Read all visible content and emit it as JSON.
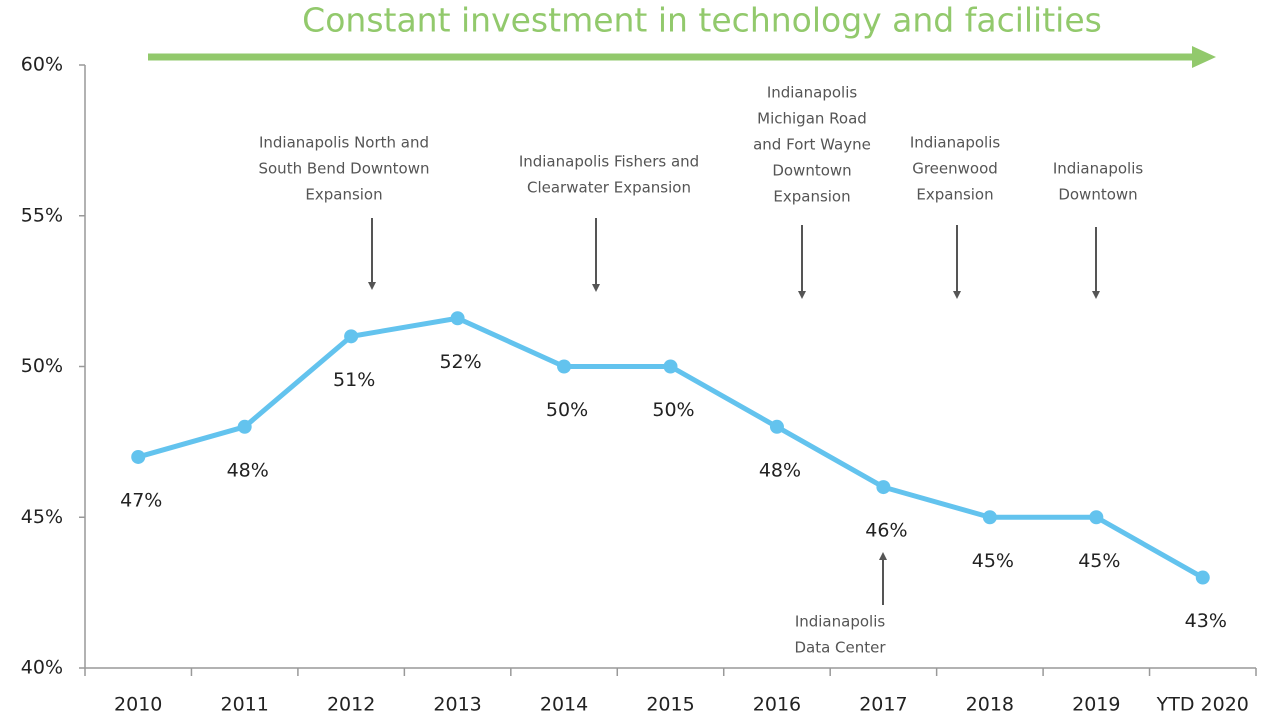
{
  "chart_data": {
    "type": "line",
    "title": "Constant investment in technology and facilities",
    "categories": [
      "2010",
      "2011",
      "2012",
      "2013",
      "2014",
      "2015",
      "2016",
      "2017",
      "2018",
      "2019",
      "YTD 2020"
    ],
    "series": [
      {
        "name": null,
        "color": "#63c3ee",
        "values": [
          47,
          48,
          51,
          51.6,
          50,
          50,
          48,
          46,
          45,
          45,
          43
        ],
        "value_labels": [
          "47%",
          "48%",
          "51%",
          "52%",
          "50%",
          "50%",
          "48%",
          "46%",
          "45%",
          "45%",
          "43%"
        ]
      }
    ],
    "ylim": [
      40,
      60
    ],
    "yticks": [
      {
        "value": 40,
        "label": "40%"
      },
      {
        "value": 45,
        "label": "45%"
      },
      {
        "value": 50,
        "label": "50%"
      },
      {
        "value": 55,
        "label": "55%"
      },
      {
        "value": 60,
        "label": "60%"
      }
    ],
    "grid": false,
    "annotations": [
      {
        "lines": [
          "Indianapolis  North  and",
          "South Bend  Downtown",
          "Expansion"
        ]
      },
      {
        "lines": [
          "Indianapolis  Fishers and",
          "Clearwater  Expansion"
        ]
      },
      {
        "lines": [
          "Indianapolis",
          "Michigan Road",
          "and Fort Wayne",
          "Downtown",
          "Expansion"
        ]
      },
      {
        "lines": [
          "Indianapolis",
          "Greenwood",
          "Expansion"
        ]
      },
      {
        "lines": [
          "Indianapolis",
          "Downtown"
        ]
      },
      {
        "lines": [
          "Indianapolis",
          "Data Center"
        ]
      }
    ]
  }
}
